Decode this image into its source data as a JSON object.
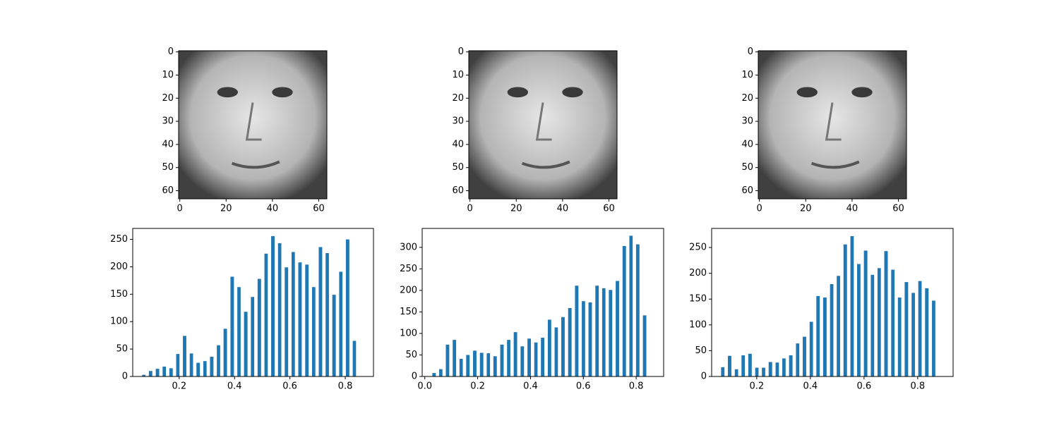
{
  "chart_data": [
    {
      "type": "image",
      "xlim": [
        -0.5,
        63.5
      ],
      "ylim": [
        63.5,
        -0.5
      ],
      "xticks": [
        0,
        20,
        40,
        60
      ],
      "yticks": [
        0,
        10,
        20,
        30,
        40,
        50,
        60
      ]
    },
    {
      "type": "image",
      "xlim": [
        -0.5,
        63.5
      ],
      "ylim": [
        63.5,
        -0.5
      ],
      "xticks": [
        0,
        20,
        40,
        60
      ],
      "yticks": [
        0,
        10,
        20,
        30,
        40,
        50,
        60
      ]
    },
    {
      "type": "image",
      "xlim": [
        -0.5,
        63.5
      ],
      "ylim": [
        63.5,
        -0.5
      ],
      "xticks": [
        0,
        20,
        40,
        60
      ],
      "yticks": [
        0,
        10,
        20,
        30,
        40,
        50,
        60
      ]
    },
    {
      "type": "histogram",
      "color": "#1f77b4",
      "bins": [
        0.06,
        0.084,
        0.109,
        0.134,
        0.158,
        0.183,
        0.207,
        0.232,
        0.256,
        0.281,
        0.305,
        0.33,
        0.354,
        0.379,
        0.404,
        0.428,
        0.453,
        0.477,
        0.502,
        0.526,
        0.551,
        0.575,
        0.6,
        0.624,
        0.649,
        0.674,
        0.698,
        0.723,
        0.747,
        0.772,
        0.796,
        0.821,
        0.845
      ],
      "values": [
        3,
        10,
        14,
        18,
        15,
        41,
        74,
        42,
        25,
        28,
        36,
        57,
        87,
        182,
        163,
        118,
        145,
        178,
        224,
        256,
        243,
        199,
        227,
        208,
        204,
        163,
        236,
        225,
        149,
        191,
        250,
        65
      ],
      "xlim": [
        0.032,
        0.902
      ],
      "ylim": [
        0,
        270
      ],
      "xticks": [
        0.2,
        0.4,
        0.6,
        0.8
      ],
      "yticks": [
        0,
        50,
        100,
        150,
        200,
        250
      ]
    },
    {
      "type": "histogram",
      "color": "#1f77b4",
      "bins": [
        0.022,
        0.048,
        0.073,
        0.099,
        0.125,
        0.15,
        0.176,
        0.202,
        0.228,
        0.253,
        0.279,
        0.305,
        0.33,
        0.356,
        0.382,
        0.408,
        0.433,
        0.459,
        0.485,
        0.51,
        0.536,
        0.562,
        0.588,
        0.613,
        0.639,
        0.665,
        0.69,
        0.716,
        0.742,
        0.768,
        0.793,
        0.819,
        0.845
      ],
      "values": [
        8,
        17,
        74,
        85,
        41,
        50,
        60,
        55,
        54,
        47,
        74,
        85,
        103,
        70,
        88,
        79,
        90,
        132,
        114,
        138,
        159,
        211,
        175,
        172,
        211,
        205,
        201,
        222,
        303,
        327,
        307,
        142
      ],
      "xlim": [
        -0.01,
        0.904
      ],
      "ylim": [
        0,
        344
      ],
      "xticks": [
        {
          "value": 0,
          "label": "0.0"
        },
        0.2,
        0.4,
        0.6,
        0.8
      ],
      "yticks": [
        0,
        50,
        100,
        150,
        200,
        250,
        300
      ]
    },
    {
      "type": "histogram",
      "color": "#1f77b4",
      "bins": [
        0.061,
        0.086,
        0.112,
        0.137,
        0.162,
        0.188,
        0.213,
        0.238,
        0.264,
        0.289,
        0.314,
        0.34,
        0.365,
        0.391,
        0.416,
        0.441,
        0.467,
        0.492,
        0.517,
        0.543,
        0.568,
        0.593,
        0.619,
        0.644,
        0.669,
        0.695,
        0.72,
        0.745,
        0.771,
        0.796,
        0.821,
        0.847,
        0.872
      ],
      "values": [
        18,
        40,
        14,
        41,
        44,
        17,
        17,
        28,
        27,
        35,
        41,
        64,
        77,
        106,
        156,
        153,
        179,
        195,
        256,
        272,
        218,
        244,
        197,
        210,
        243,
        207,
        153,
        183,
        162,
        185,
        171,
        147
      ],
      "xlim": [
        0.032,
        0.932
      ],
      "ylim": [
        0,
        287
      ],
      "xticks": [
        0.2,
        0.4,
        0.6,
        0.8
      ],
      "yticks": [
        0,
        50,
        100,
        150,
        200,
        250
      ]
    }
  ]
}
